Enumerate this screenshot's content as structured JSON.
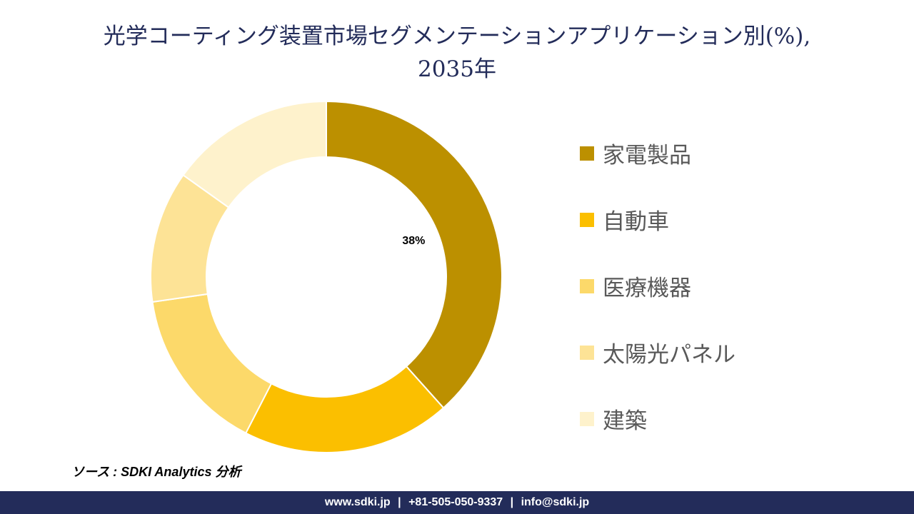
{
  "chart_data": {
    "type": "pie",
    "variant": "donut",
    "title_line1": "光学コーティング装置市場セグメンテーションアプリケーション別(%),",
    "title_line2": "2035年",
    "categories": [
      "家電製品",
      "自動車",
      "医療機器",
      "太陽光パネル",
      "建築"
    ],
    "values": [
      38,
      19,
      15,
      12,
      15
    ],
    "colors": [
      "#bc9000",
      "#fbbf00",
      "#fcd96a",
      "#fde396",
      "#fef2cc"
    ],
    "data_labels": [
      "38%"
    ],
    "legend_position": "right"
  },
  "source": "ソース : SDKI Analytics 分析",
  "footer": {
    "website": "www.sdki.jp",
    "phone": "+81-505-050-9337",
    "email": "info@sdki.jp",
    "separator": "|"
  }
}
